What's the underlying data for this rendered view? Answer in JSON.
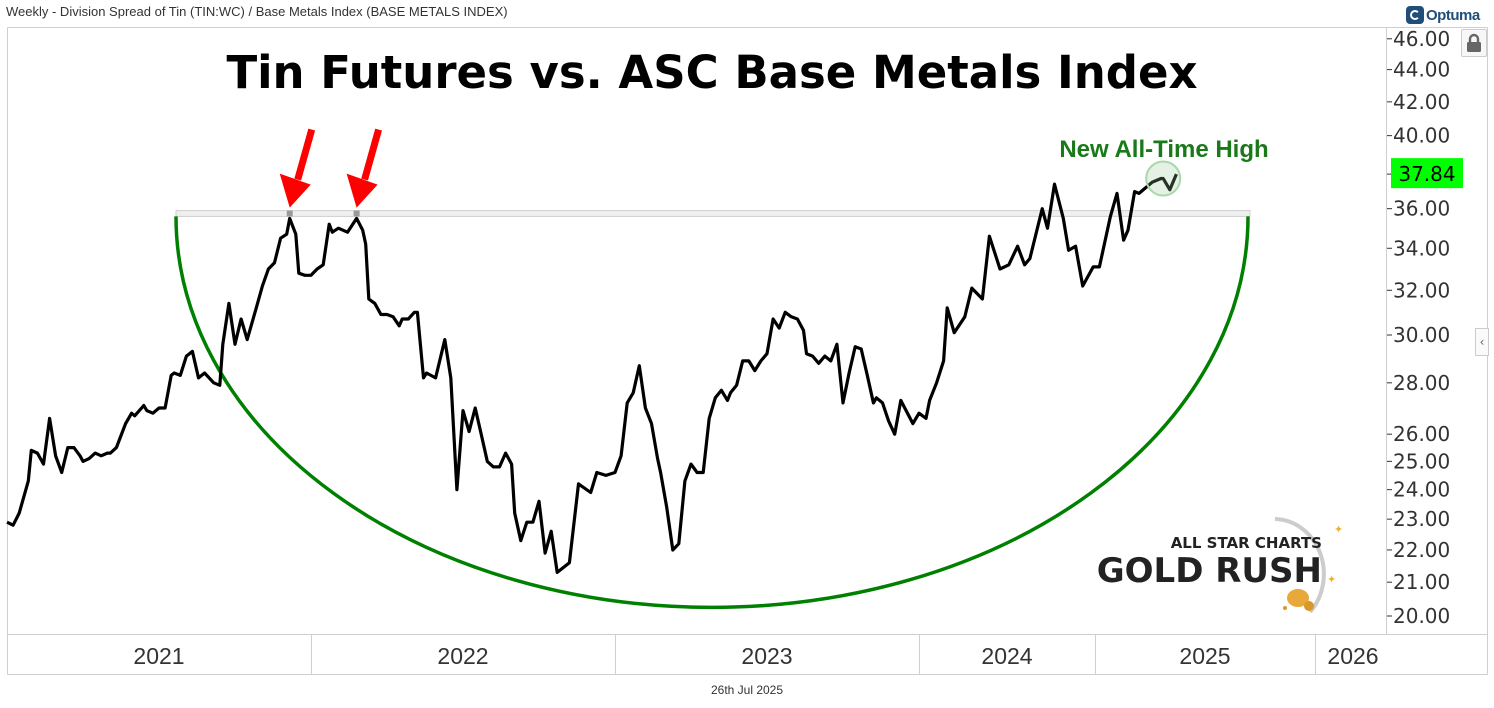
{
  "header": {
    "title": "Weekly - Division Spread of Tin (TIN:WC) / Base Metals Index (BASE METALS INDEX)",
    "brand": "Optuma"
  },
  "footer": {
    "date": "26th Jul 2025"
  },
  "annotations": {
    "headline": "Tin Futures vs. ASC Base Metals Index",
    "ath_label": "New All-Time High",
    "watermark_top": "ALL STAR CHARTS",
    "watermark_bottom": "GOLD RUSH"
  },
  "colors": {
    "line": "#000000",
    "arc": "#008000",
    "arrow": "#ff0000",
    "last_price_bg": "#00ff00",
    "ath_label": "#1a7a1a",
    "brand": "#1f4e79"
  },
  "icons": {
    "lock": "lock-icon",
    "collapse": "chevron-left-icon"
  },
  "chart_data": {
    "type": "line",
    "title": "Tin Futures vs. ASC Base Metals Index",
    "frequency": "Weekly",
    "y_scale": "log",
    "ylim": [
      19.6,
      47
    ],
    "grid": false,
    "last_value": "37.84",
    "y_ticks": [
      "46.00",
      "44.00",
      "42.00",
      "40.00",
      "36.00",
      "34.00",
      "32.00",
      "30.00",
      "28.00",
      "26.00",
      "25.00",
      "24.00",
      "23.00",
      "22.00",
      "21.00",
      "20.00"
    ],
    "x_ticks": [
      "2021",
      "2022",
      "2023",
      "2024",
      "2025",
      "2026"
    ],
    "resistance_band": [
      35.6,
      35.9
    ],
    "arrow_peaks": [
      [
        2021.93,
        35.5
      ],
      [
        2022.15,
        35.5
      ]
    ],
    "highlight_point": [
      2025.31,
      37.6
    ],
    "series": [
      {
        "points": [
          [
            2021.0,
            22.9
          ],
          [
            2021.02,
            22.8
          ],
          [
            2021.04,
            23.2
          ],
          [
            2021.07,
            24.3
          ],
          [
            2021.08,
            25.4
          ],
          [
            2021.1,
            25.3
          ],
          [
            2021.12,
            24.9
          ],
          [
            2021.14,
            26.6
          ],
          [
            2021.16,
            25.2
          ],
          [
            2021.18,
            24.6
          ],
          [
            2021.2,
            25.5
          ],
          [
            2021.22,
            25.5
          ],
          [
            2021.24,
            25.2
          ],
          [
            2021.25,
            25.0
          ],
          [
            2021.27,
            25.1
          ],
          [
            2021.29,
            25.3
          ],
          [
            2021.31,
            25.2
          ],
          [
            2021.33,
            25.3
          ],
          [
            2021.34,
            25.3
          ],
          [
            2021.36,
            25.5
          ],
          [
            2021.37,
            25.8
          ],
          [
            2021.39,
            26.4
          ],
          [
            2021.41,
            26.8
          ],
          [
            2021.42,
            26.7
          ],
          [
            2021.45,
            27.1
          ],
          [
            2021.46,
            26.9
          ],
          [
            2021.48,
            26.8
          ],
          [
            2021.5,
            27.0
          ],
          [
            2021.52,
            27.0
          ],
          [
            2021.54,
            28.3
          ],
          [
            2021.55,
            28.4
          ],
          [
            2021.57,
            28.3
          ],
          [
            2021.59,
            29.1
          ],
          [
            2021.61,
            29.3
          ],
          [
            2021.63,
            28.2
          ],
          [
            2021.65,
            28.4
          ],
          [
            2021.68,
            28.0
          ],
          [
            2021.7,
            27.9
          ],
          [
            2021.71,
            29.6
          ],
          [
            2021.73,
            31.4
          ],
          [
            2021.75,
            29.6
          ],
          [
            2021.77,
            30.7
          ],
          [
            2021.79,
            29.8
          ],
          [
            2021.82,
            31.2
          ],
          [
            2021.84,
            32.2
          ],
          [
            2021.86,
            33.0
          ],
          [
            2021.88,
            33.3
          ],
          [
            2021.9,
            34.5
          ],
          [
            2021.92,
            34.7
          ],
          [
            2021.93,
            35.5
          ],
          [
            2021.95,
            34.7
          ],
          [
            2021.96,
            32.8
          ],
          [
            2021.98,
            32.7
          ],
          [
            2022.0,
            32.7
          ],
          [
            2022.02,
            33.0
          ],
          [
            2022.04,
            33.2
          ],
          [
            2022.06,
            35.2
          ],
          [
            2022.07,
            34.8
          ],
          [
            2022.09,
            35.0
          ],
          [
            2022.12,
            34.8
          ],
          [
            2022.15,
            35.5
          ],
          [
            2022.17,
            34.9
          ],
          [
            2022.18,
            34.2
          ],
          [
            2022.19,
            31.6
          ],
          [
            2022.21,
            31.4
          ],
          [
            2022.23,
            30.9
          ],
          [
            2022.25,
            30.9
          ],
          [
            2022.27,
            30.8
          ],
          [
            2022.29,
            30.4
          ],
          [
            2022.3,
            30.7
          ],
          [
            2022.32,
            30.7
          ],
          [
            2022.34,
            31.0
          ],
          [
            2022.35,
            31.0
          ],
          [
            2022.37,
            28.2
          ],
          [
            2022.38,
            28.4
          ],
          [
            2022.41,
            28.2
          ],
          [
            2022.44,
            29.8
          ],
          [
            2022.46,
            28.2
          ],
          [
            2022.48,
            24.0
          ],
          [
            2022.5,
            26.9
          ],
          [
            2022.52,
            26.1
          ],
          [
            2022.54,
            27.0
          ],
          [
            2022.56,
            26.0
          ],
          [
            2022.58,
            25.0
          ],
          [
            2022.6,
            24.8
          ],
          [
            2022.62,
            24.8
          ],
          [
            2022.64,
            25.3
          ],
          [
            2022.66,
            24.9
          ],
          [
            2022.67,
            23.2
          ],
          [
            2022.69,
            22.3
          ],
          [
            2022.71,
            22.9
          ],
          [
            2022.73,
            22.9
          ],
          [
            2022.75,
            23.6
          ],
          [
            2022.77,
            21.9
          ],
          [
            2022.79,
            22.6
          ],
          [
            2022.81,
            21.3
          ],
          [
            2022.85,
            21.6
          ],
          [
            2022.88,
            24.2
          ],
          [
            2022.92,
            23.9
          ],
          [
            2022.94,
            24.6
          ],
          [
            2022.97,
            24.5
          ],
          [
            2023.0,
            24.6
          ],
          [
            2023.02,
            25.2
          ],
          [
            2023.04,
            27.2
          ],
          [
            2023.06,
            27.6
          ],
          [
            2023.08,
            28.7
          ],
          [
            2023.1,
            27.0
          ],
          [
            2023.12,
            26.4
          ],
          [
            2023.14,
            25.1
          ],
          [
            2023.15,
            24.6
          ],
          [
            2023.17,
            23.4
          ],
          [
            2023.19,
            22.0
          ],
          [
            2023.21,
            22.2
          ],
          [
            2023.23,
            24.3
          ],
          [
            2023.25,
            24.9
          ],
          [
            2023.27,
            24.6
          ],
          [
            2023.29,
            24.6
          ],
          [
            2023.31,
            26.6
          ],
          [
            2023.33,
            27.4
          ],
          [
            2023.35,
            27.7
          ],
          [
            2023.37,
            27.3
          ],
          [
            2023.38,
            27.6
          ],
          [
            2023.4,
            27.9
          ],
          [
            2023.42,
            28.9
          ],
          [
            2023.44,
            28.9
          ],
          [
            2023.46,
            28.5
          ],
          [
            2023.48,
            28.9
          ],
          [
            2023.5,
            29.2
          ],
          [
            2023.52,
            30.7
          ],
          [
            2023.54,
            30.3
          ],
          [
            2023.56,
            31.0
          ],
          [
            2023.58,
            30.8
          ],
          [
            2023.6,
            30.7
          ],
          [
            2023.62,
            30.2
          ],
          [
            2023.63,
            29.2
          ],
          [
            2023.65,
            29.1
          ],
          [
            2023.67,
            28.8
          ],
          [
            2023.69,
            29.1
          ],
          [
            2023.71,
            28.9
          ],
          [
            2023.73,
            29.6
          ],
          [
            2023.75,
            27.2
          ],
          [
            2023.77,
            28.4
          ],
          [
            2023.79,
            29.5
          ],
          [
            2023.81,
            29.4
          ],
          [
            2023.83,
            28.3
          ],
          [
            2023.85,
            27.2
          ],
          [
            2023.86,
            27.4
          ],
          [
            2023.88,
            27.2
          ],
          [
            2023.9,
            26.5
          ],
          [
            2023.92,
            26.0
          ],
          [
            2023.94,
            27.3
          ],
          [
            2023.98,
            26.4
          ],
          [
            2024.0,
            26.8
          ],
          [
            2024.04,
            26.6
          ],
          [
            2024.06,
            27.3
          ],
          [
            2024.1,
            28.0
          ],
          [
            2024.14,
            28.9
          ],
          [
            2024.16,
            31.2
          ],
          [
            2024.2,
            30.1
          ],
          [
            2024.26,
            30.8
          ],
          [
            2024.3,
            32.1
          ],
          [
            2024.36,
            31.6
          ],
          [
            2024.4,
            34.6
          ],
          [
            2024.46,
            33.0
          ],
          [
            2024.51,
            33.2
          ],
          [
            2024.56,
            34.1
          ],
          [
            2024.6,
            33.2
          ],
          [
            2024.63,
            33.5
          ],
          [
            2024.7,
            36.0
          ],
          [
            2024.73,
            35.0
          ],
          [
            2024.77,
            37.3
          ],
          [
            2024.82,
            35.5
          ],
          [
            2024.85,
            33.9
          ],
          [
            2024.89,
            34.1
          ],
          [
            2024.93,
            32.2
          ],
          [
            2024.99,
            33.1
          ],
          [
            2025.02,
            33.1
          ],
          [
            2025.07,
            35.6
          ],
          [
            2025.1,
            36.8
          ],
          [
            2025.13,
            34.4
          ],
          [
            2025.15,
            34.9
          ],
          [
            2025.18,
            36.9
          ],
          [
            2025.2,
            36.8
          ],
          [
            2025.26,
            37.4
          ],
          [
            2025.3,
            37.6
          ],
          [
            2025.31,
            37.6
          ],
          [
            2025.34,
            37.0
          ],
          [
            2025.37,
            37.84
          ]
        ]
      }
    ]
  }
}
